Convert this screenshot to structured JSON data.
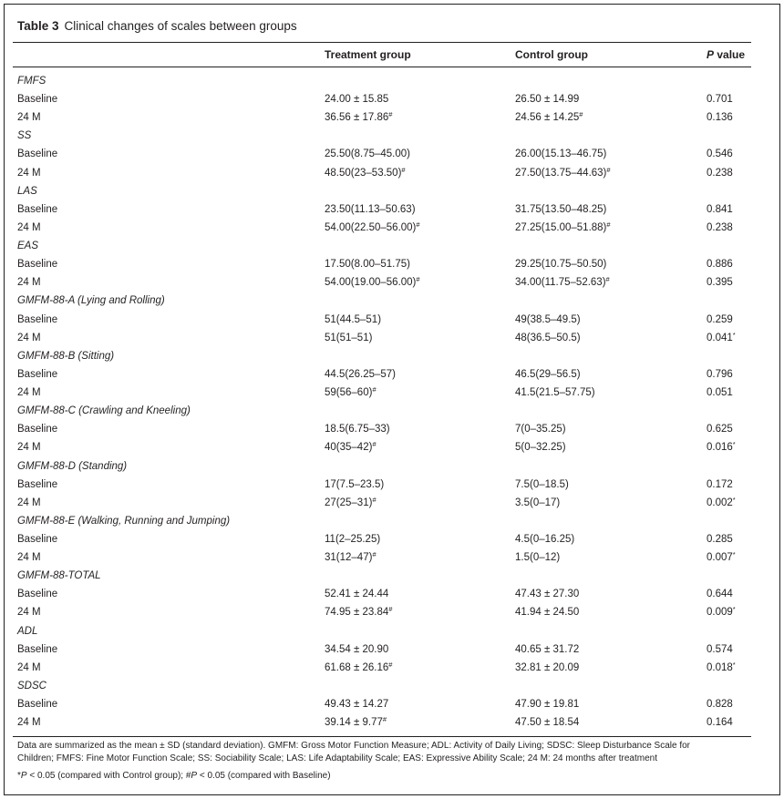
{
  "title": {
    "label": "Table 3",
    "text": "Clinical changes of scales between groups"
  },
  "columns": {
    "treatment": "Treatment group",
    "control": "Control group",
    "p_italic": "P",
    "p_rest": " value"
  },
  "rows": [
    {
      "type": "section",
      "label": "FMFS"
    },
    {
      "type": "data",
      "label": "Baseline",
      "treatment": "24.00 ± 15.85",
      "t_mark": "",
      "control": "26.50 ± 14.99",
      "c_mark": "",
      "p": "0.701",
      "p_mark": ""
    },
    {
      "type": "data",
      "label": "24 M",
      "treatment": "36.56 ± 17.86",
      "t_mark": "#",
      "control": "24.56 ± 14.25",
      "c_mark": "#",
      "p": "0.136",
      "p_mark": ""
    },
    {
      "type": "section",
      "label": "SS"
    },
    {
      "type": "data",
      "label": "Baseline",
      "treatment": "25.50(8.75–45.00)",
      "t_mark": "",
      "control": "26.00(15.13–46.75)",
      "c_mark": "",
      "p": "0.546",
      "p_mark": ""
    },
    {
      "type": "data",
      "label": "24 M",
      "treatment": "48.50(23–53.50)",
      "t_mark": "#",
      "control": "27.50(13.75–44.63)",
      "c_mark": "#",
      "p": "0.238",
      "p_mark": ""
    },
    {
      "type": "section",
      "label": "LAS"
    },
    {
      "type": "data",
      "label": "Baseline",
      "treatment": "23.50(11.13–50.63)",
      "t_mark": "",
      "control": "31.75(13.50–48.25)",
      "c_mark": "",
      "p": "0.841",
      "p_mark": ""
    },
    {
      "type": "data",
      "label": "24 M",
      "treatment": "54.00(22.50–56.00)",
      "t_mark": "#",
      "control": "27.25(15.00–51.88)",
      "c_mark": "#",
      "p": "0.238",
      "p_mark": ""
    },
    {
      "type": "section",
      "label": "EAS"
    },
    {
      "type": "data",
      "label": "Baseline",
      "treatment": "17.50(8.00–51.75)",
      "t_mark": "",
      "control": "29.25(10.75–50.50)",
      "c_mark": "",
      "p": "0.886",
      "p_mark": ""
    },
    {
      "type": "data",
      "label": "24 M",
      "treatment": "54.00(19.00–56.00)",
      "t_mark": "#",
      "control": "34.00(11.75–52.63)",
      "c_mark": "#",
      "p": "0.395",
      "p_mark": ""
    },
    {
      "type": "section",
      "label": "GMFM-88-A (Lying and Rolling)"
    },
    {
      "type": "data",
      "label": "Baseline",
      "treatment": "51(44.5–51)",
      "t_mark": "",
      "control": "49(38.5–49.5)",
      "c_mark": "",
      "p": "0.259",
      "p_mark": ""
    },
    {
      "type": "data",
      "label": "24 M",
      "treatment": "51(51–51)",
      "t_mark": "",
      "control": "48(36.5–50.5)",
      "c_mark": "",
      "p": "0.041",
      "p_mark": "*"
    },
    {
      "type": "section",
      "label": "GMFM-88-B (Sitting)"
    },
    {
      "type": "data",
      "label": "Baseline",
      "treatment": "44.5(26.25–57)",
      "t_mark": "",
      "control": "46.5(29–56.5)",
      "c_mark": "",
      "p": "0.796",
      "p_mark": ""
    },
    {
      "type": "data",
      "label": "24 M",
      "treatment": "59(56–60)",
      "t_mark": "#",
      "control": "41.5(21.5–57.75)",
      "c_mark": "",
      "p": "0.051",
      "p_mark": ""
    },
    {
      "type": "section",
      "label": "GMFM-88-C (Crawling and Kneeling)"
    },
    {
      "type": "data",
      "label": "Baseline",
      "treatment": "18.5(6.75–33)",
      "t_mark": "",
      "control": "7(0–35.25)",
      "c_mark": "",
      "p": "0.625",
      "p_mark": ""
    },
    {
      "type": "data",
      "label": "24 M",
      "treatment": "40(35–42)",
      "t_mark": "#",
      "control": "5(0–32.25)",
      "c_mark": "",
      "p": "0.016",
      "p_mark": "*"
    },
    {
      "type": "section",
      "label": "GMFM-88-D (Standing)"
    },
    {
      "type": "data",
      "label": "Baseline",
      "treatment": "17(7.5–23.5)",
      "t_mark": "",
      "control": "7.5(0–18.5)",
      "c_mark": "",
      "p": "0.172",
      "p_mark": ""
    },
    {
      "type": "data",
      "label": "24 M",
      "treatment": "27(25–31)",
      "t_mark": "#",
      "control": "3.5(0–17)",
      "c_mark": "",
      "p": "0.002",
      "p_mark": "*"
    },
    {
      "type": "section",
      "label": "GMFM-88-E (Walking, Running and Jumping)"
    },
    {
      "type": "data",
      "label": "Baseline",
      "treatment": "11(2–25.25)",
      "t_mark": "",
      "control": "4.5(0–16.25)",
      "c_mark": "",
      "p": "0.285",
      "p_mark": ""
    },
    {
      "type": "data",
      "label": "24 M",
      "treatment": "31(12–47)",
      "t_mark": "#",
      "control": "1.5(0–12)",
      "c_mark": "",
      "p": "0.007",
      "p_mark": "*"
    },
    {
      "type": "section",
      "label": "GMFM-88-TOTAL"
    },
    {
      "type": "data",
      "label": "Baseline",
      "treatment": "52.41 ± 24.44",
      "t_mark": "",
      "control": "47.43 ± 27.30",
      "c_mark": "",
      "p": "0.644",
      "p_mark": ""
    },
    {
      "type": "data",
      "label": "24 M",
      "treatment": "74.95 ± 23.84",
      "t_mark": "#",
      "control": "41.94 ± 24.50",
      "c_mark": "",
      "p": "0.009",
      "p_mark": "*"
    },
    {
      "type": "section",
      "label": "ADL"
    },
    {
      "type": "data",
      "label": "Baseline",
      "treatment": "34.54 ± 20.90",
      "t_mark": "",
      "control": "40.65 ± 31.72",
      "c_mark": "",
      "p": "0.574",
      "p_mark": ""
    },
    {
      "type": "data",
      "label": "24 M",
      "treatment": "61.68 ± 26.16",
      "t_mark": "#",
      "control": "32.81 ± 20.09",
      "c_mark": "",
      "p": "0.018",
      "p_mark": "*"
    },
    {
      "type": "section",
      "label": "SDSC"
    },
    {
      "type": "data",
      "label": "Baseline",
      "treatment": "49.43 ± 14.27",
      "t_mark": "",
      "control": "47.90 ± 19.81",
      "c_mark": "",
      "p": "0.828",
      "p_mark": ""
    },
    {
      "type": "data",
      "label": "24 M",
      "treatment": "39.14 ± 9.77",
      "t_mark": "#",
      "control": "47.50 ± 18.54",
      "c_mark": "",
      "p": "0.164",
      "p_mark": ""
    }
  ],
  "footnotes": {
    "line1": "Data are summarized as the mean ± SD (standard deviation). GMFM: Gross Motor Function Measure; ADL: Activity of Daily Living; SDSC: Sleep Disturbance Scale for",
    "line2": "Children; FMFS: Fine Motor Function Scale; SS: Sociability Scale; LAS: Life Adaptability Scale; EAS: Expressive Ability Scale; 24 M: 24 months after treatment",
    "line3_a": "*",
    "line3_b": "P",
    "line3_c": " < 0.05 (compared with Control group); #",
    "line3_d": "P",
    "line3_e": " < 0.05 (compared with Baseline)"
  }
}
